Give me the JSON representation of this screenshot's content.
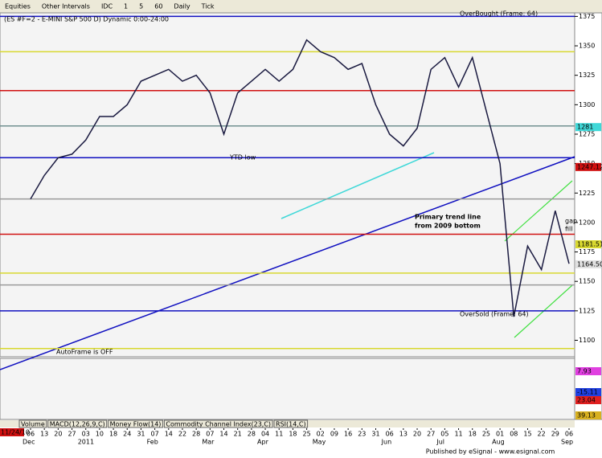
{
  "toolbar": [
    "Equities",
    "Other Intervals",
    "IDC",
    "1",
    "5",
    "60",
    "Daily",
    "Tick"
  ],
  "chart_data": {
    "type": "line",
    "title": "(ES #F=2 - E-MINI S&P 500 D) Dynamic 0:00-24:00",
    "categories": [
      "06",
      "13",
      "20",
      "27",
      "03",
      "10",
      "18",
      "24",
      "31",
      "07",
      "14",
      "22",
      "28",
      "07",
      "14",
      "21",
      "28",
      "04",
      "11",
      "18",
      "25",
      "02",
      "09",
      "16",
      "23",
      "31",
      "06",
      "13",
      "20",
      "27",
      "05",
      "11",
      "18",
      "25",
      "01",
      "08",
      "15",
      "22",
      "29",
      "06"
    ],
    "months": [
      "Dec",
      null,
      null,
      null,
      "2011",
      null,
      null,
      null,
      null,
      "Feb",
      null,
      null,
      null,
      "Mar",
      null,
      null,
      null,
      "Apr",
      null,
      null,
      null,
      "May",
      null,
      null,
      null,
      null,
      "Jun",
      null,
      null,
      null,
      "Jul",
      null,
      null,
      null,
      "Aug",
      null,
      null,
      null,
      null,
      "Sep"
    ],
    "start_label": "11/24/10",
    "series": [
      {
        "name": "ES #F=2",
        "color": "#1a1a40",
        "values": [
          1220,
          1240,
          1255,
          1258,
          1270,
          1290,
          1290,
          1300,
          1320,
          1325,
          1330,
          1320,
          1325,
          1310,
          1275,
          1310,
          1320,
          1330,
          1320,
          1330,
          1355,
          1345,
          1340,
          1330,
          1335,
          1300,
          1275,
          1265,
          1280,
          1330,
          1340,
          1315,
          1340,
          1295,
          1250,
          1120,
          1180,
          1160,
          1210,
          1165
        ]
      }
    ],
    "ylim": [
      1086,
      1378
    ],
    "yticks": [
      1100,
      1125,
      1150,
      1175,
      1200,
      1225,
      1250,
      1275,
      1300,
      1325,
      1350,
      1375
    ],
    "levels": [
      {
        "value": 1375,
        "color": "#1010c0"
      },
      {
        "value": 1345,
        "color": "#d8d830"
      },
      {
        "value": 1312,
        "color": "#d01010"
      },
      {
        "value": 1282,
        "color": "#6f8f8f"
      },
      {
        "value": 1255,
        "color": "#1010c0"
      },
      {
        "value": 1220,
        "color": "#9a9a9a"
      },
      {
        "value": 1190,
        "color": "#d01010"
      },
      {
        "value": 1157,
        "color": "#d8d830"
      },
      {
        "value": 1147,
        "color": "#9a9a9a"
      },
      {
        "value": 1125,
        "color": "#1010c0"
      },
      {
        "value": 1093,
        "color": "#d8d830"
      }
    ],
    "price_tags": [
      {
        "value": 1281,
        "label": "1281",
        "color": "#40d8d8"
      },
      {
        "value": 1247.12,
        "label": "1247.12",
        "color": "#d01010"
      },
      {
        "value": 1181.51,
        "label": "1181.51",
        "color": "#d8d830"
      },
      {
        "value": 1164.5,
        "label": "1164.50",
        "color": "#e0e0e0"
      }
    ],
    "annotations": [
      "YTD low",
      "Primary trend line",
      "from 2009 bottom",
      "gap",
      "fill",
      "OverSold (Frame: 64)",
      "OverBought (Frame: 64)",
      "AutoFrame is OFF"
    ],
    "indicator_tags": [
      {
        "label": "7.93",
        "color": "#e040e0"
      },
      {
        "label": "-15.11",
        "color": "#2040e0"
      },
      {
        "label": "23.04",
        "color": "#e02020"
      },
      {
        "label": "39.13",
        "color": "#d8b020"
      }
    ],
    "tabs": [
      "Volume",
      "MACD(12,26,9,C)",
      "Money Flow(14)",
      "Commodity Channel Index(23,C)",
      "RSI(14,C)"
    ]
  },
  "footer": "Published by eSignal - www.esignal.com"
}
